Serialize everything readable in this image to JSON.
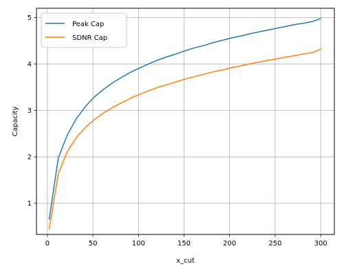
{
  "chart_data": {
    "type": "line",
    "title": "",
    "xlabel": "x_cut",
    "ylabel": "Capacity",
    "xlim": [
      -12,
      315
    ],
    "ylim": [
      0.33,
      5.2
    ],
    "xticks": [
      0,
      50,
      100,
      150,
      200,
      250,
      300
    ],
    "yticks": [
      1,
      2,
      3,
      4,
      5
    ],
    "grid": true,
    "legend_position": "upper-left",
    "series": [
      {
        "name": "Peak Cap",
        "color": "#1f77b4",
        "x": [
          2,
          12,
          22,
          32,
          42,
          52,
          62,
          72,
          82,
          92,
          102,
          112,
          122,
          132,
          142,
          152,
          162,
          172,
          182,
          192,
          202,
          212,
          222,
          232,
          242,
          252,
          262,
          272,
          282,
          292,
          300
        ],
        "y": [
          0.66,
          1.98,
          2.48,
          2.83,
          3.09,
          3.3,
          3.46,
          3.6,
          3.72,
          3.83,
          3.92,
          4.01,
          4.09,
          4.16,
          4.22,
          4.29,
          4.35,
          4.4,
          4.46,
          4.51,
          4.56,
          4.6,
          4.65,
          4.69,
          4.73,
          4.77,
          4.81,
          4.85,
          4.88,
          4.92,
          4.98
        ]
      },
      {
        "name": "SDNR Cap",
        "color": "#ff7f0e",
        "x": [
          2,
          12,
          22,
          32,
          42,
          52,
          62,
          72,
          82,
          92,
          102,
          112,
          122,
          132,
          142,
          152,
          162,
          172,
          182,
          192,
          202,
          212,
          222,
          232,
          242,
          252,
          262,
          272,
          282,
          292,
          300
        ],
        "y": [
          0.45,
          1.64,
          2.12,
          2.42,
          2.64,
          2.81,
          2.95,
          3.07,
          3.17,
          3.27,
          3.35,
          3.43,
          3.5,
          3.56,
          3.62,
          3.68,
          3.73,
          3.78,
          3.83,
          3.87,
          3.92,
          3.96,
          4.0,
          4.04,
          4.08,
          4.11,
          4.15,
          4.18,
          4.22,
          4.25,
          4.32
        ]
      }
    ]
  }
}
